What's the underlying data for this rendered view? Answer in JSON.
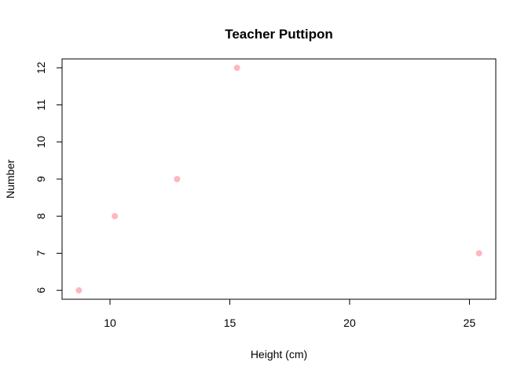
{
  "chart_data": {
    "type": "scatter",
    "title": "Teacher Puttipon",
    "xlabel": "Height (cm)",
    "ylabel": "Number",
    "xlim": [
      8.0,
      26.1
    ],
    "ylim": [
      5.76,
      12.24
    ],
    "xticks": [
      10,
      15,
      20,
      25
    ],
    "yticks": [
      6,
      7,
      8,
      9,
      10,
      11,
      12
    ],
    "grid": false,
    "point_color": "#ffb6c1",
    "points": [
      {
        "x": 8.7,
        "y": 6
      },
      {
        "x": 10.2,
        "y": 8
      },
      {
        "x": 12.8,
        "y": 9
      },
      {
        "x": 15.3,
        "y": 12
      },
      {
        "x": 25.4,
        "y": 7
      }
    ]
  }
}
